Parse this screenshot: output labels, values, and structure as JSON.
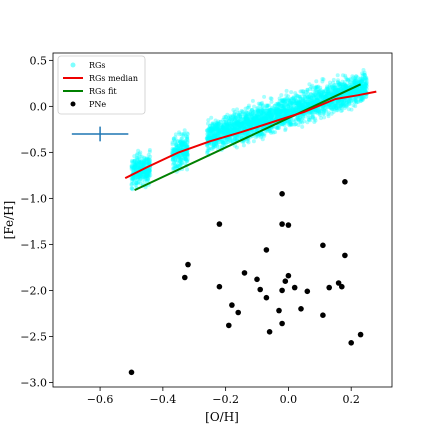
{
  "chart_data": {
    "type": "scatter",
    "xlabel": "[O/H]",
    "ylabel": "[Fe/H]",
    "xlim": [
      -0.75,
      0.33
    ],
    "ylim": [
      -3.05,
      0.58
    ],
    "x_ticks": [
      -0.6,
      -0.4,
      -0.2,
      0.0,
      0.2
    ],
    "x_tick_labels": [
      "−0.6",
      "−0.4",
      "−0.2",
      "0.0",
      "0.2"
    ],
    "y_ticks": [
      0.5,
      0.0,
      -0.5,
      -1.0,
      -1.5,
      -2.0,
      -2.5,
      -3.0
    ],
    "y_tick_labels": [
      "0.5",
      "0.0",
      "−0.5",
      "−1.0",
      "−1.5",
      "−2.0",
      "−2.5",
      "−3.0"
    ],
    "grid": false,
    "legend_position": "top-left",
    "legend": [
      {
        "label": "RGs",
        "kind": "marker",
        "color": "#00ffff"
      },
      {
        "label": "RGs median",
        "kind": "line",
        "color": "#ee0000"
      },
      {
        "label": "RGs fit",
        "kind": "line",
        "color": "#008000"
      },
      {
        "label": "PNe",
        "kind": "marker",
        "color": "#000000"
      }
    ],
    "series": [
      {
        "name": "RGs",
        "kind": "density",
        "color": "#00ffff",
        "clusters": [
          {
            "x_range": [
              -0.5,
              -0.44
            ],
            "y_center": [
              -0.72,
              -0.66
            ],
            "y_spread": 0.18
          },
          {
            "x_range": [
              -0.37,
              -0.32
            ],
            "y_center": [
              -0.55,
              -0.45
            ],
            "y_spread": 0.2
          },
          {
            "x_range": [
              -0.26,
              0.25
            ],
            "y_center": [
              -0.34,
              0.22
            ],
            "y_spread": 0.18
          }
        ]
      },
      {
        "name": "RGs median",
        "kind": "line",
        "color": "#ee0000",
        "x": [
          -0.52,
          -0.45,
          -0.35,
          -0.25,
          -0.15,
          -0.05,
          0.05,
          0.15,
          0.22,
          0.28
        ],
        "y": [
          -0.78,
          -0.66,
          -0.5,
          -0.38,
          -0.28,
          -0.17,
          -0.06,
          0.08,
          0.12,
          0.16
        ]
      },
      {
        "name": "RGs fit",
        "kind": "line",
        "color": "#008000",
        "x": [
          -0.49,
          0.23
        ],
        "y": [
          -0.91,
          0.24
        ]
      },
      {
        "name": "PNe",
        "kind": "scatter",
        "color": "#000000",
        "x": [
          -0.02,
          -0.02,
          0.0,
          0.18,
          -0.22,
          0.11,
          0.18,
          -0.07,
          -0.32,
          -0.14,
          -0.1,
          -0.01,
          -0.33,
          -0.09,
          -0.22,
          0.0,
          0.17,
          0.02,
          0.13,
          -0.02,
          0.06,
          0.16,
          -0.18,
          -0.07,
          0.04,
          -0.03,
          0.11,
          -0.16,
          -0.02,
          -0.19,
          -0.06,
          0.23,
          0.2,
          -0.5
        ],
        "y": [
          -0.95,
          -1.28,
          -1.29,
          -0.82,
          -1.28,
          -1.51,
          -1.62,
          -1.56,
          -1.72,
          -1.81,
          -1.88,
          -1.9,
          -1.86,
          -1.99,
          -1.96,
          -1.84,
          -1.96,
          -1.97,
          -1.97,
          -2.0,
          -2.01,
          -1.92,
          -2.16,
          -2.08,
          -2.2,
          -2.22,
          -2.27,
          -2.24,
          -2.36,
          -2.38,
          -2.45,
          -2.48,
          -2.57,
          -2.89
        ]
      },
      {
        "name": "",
        "kind": "errorbar",
        "color": "#1f77b4",
        "x": -0.6,
        "y": -0.3,
        "xerr": 0.09,
        "yerr": 0.08
      }
    ]
  }
}
